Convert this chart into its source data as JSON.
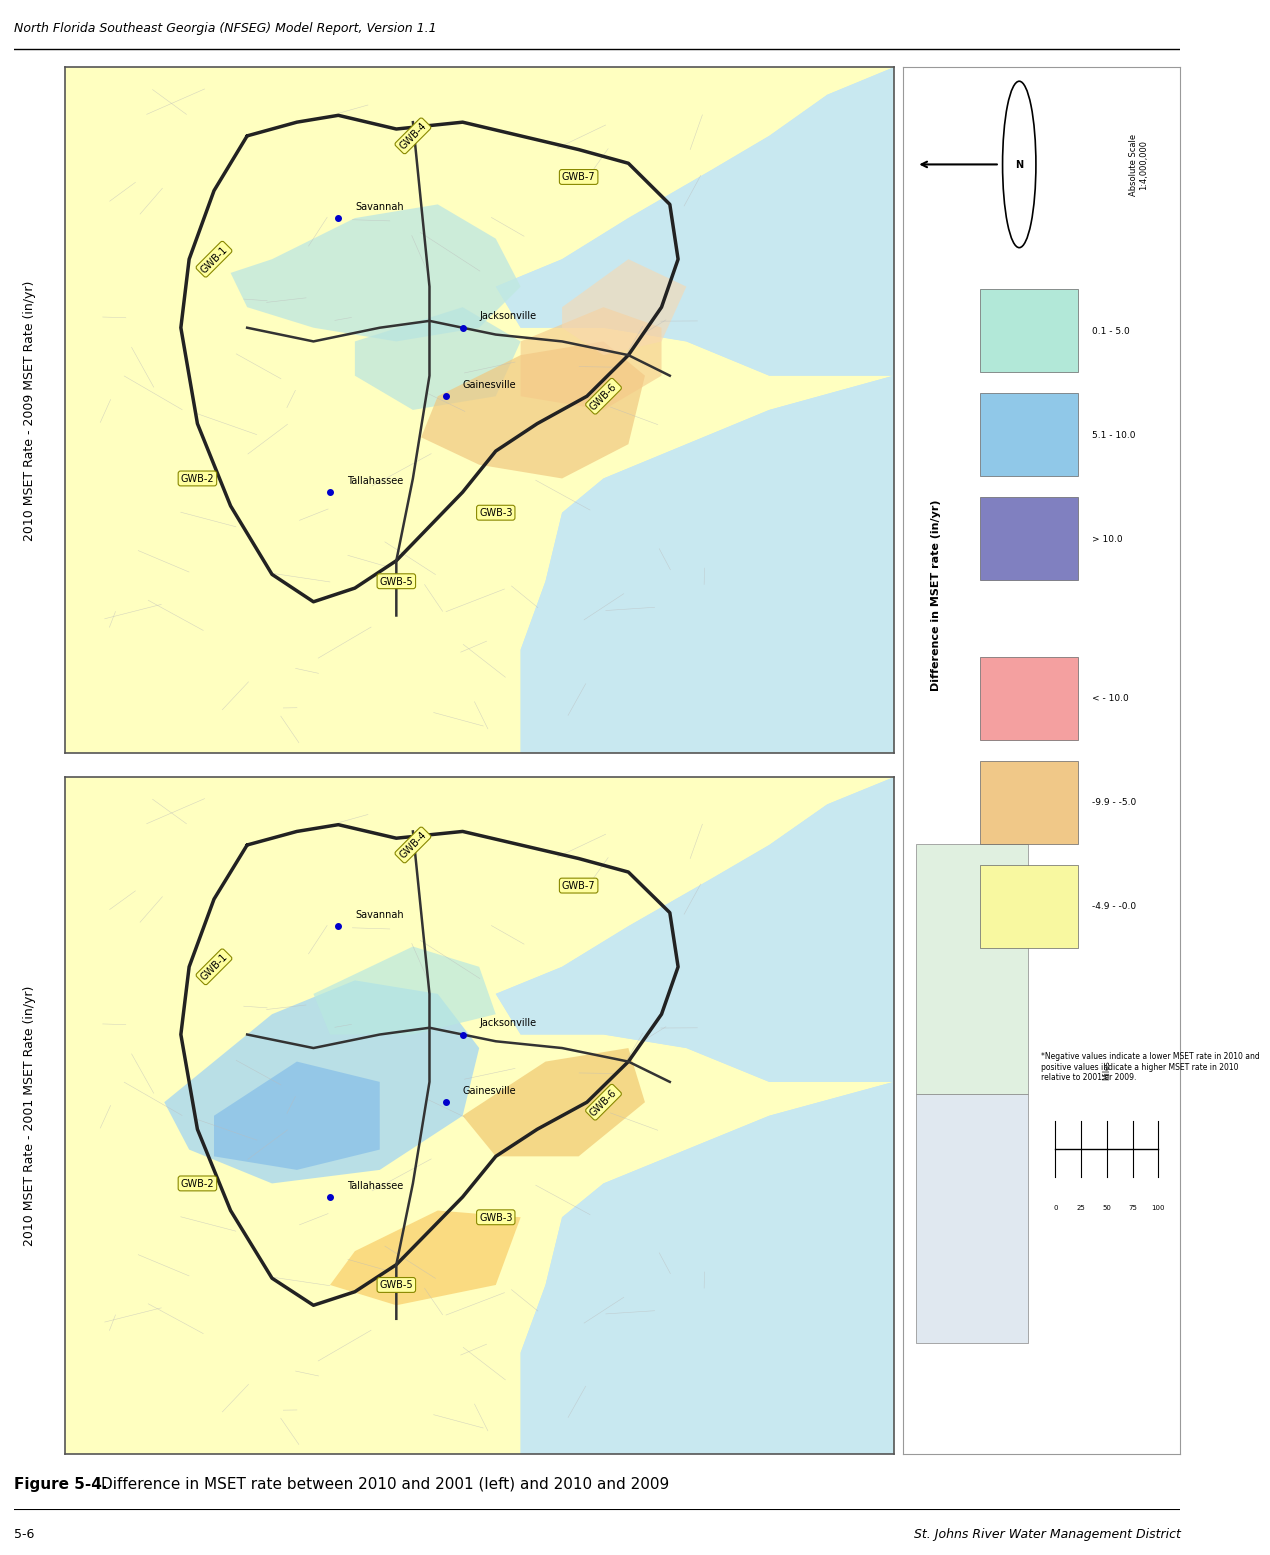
{
  "header_text": "North Florida Southeast Georgia (NFSEG) Model Report, Version 1.1",
  "header_fontsize": 9,
  "header_color": "#000000",
  "figure_caption_bold": "Figure 5-4.",
  "figure_caption_desc": "     Difference in MSET rate between 2010 and 2001 (left) and 2010 and 2009",
  "figure_caption_fontsize": 11,
  "footer_left": "5-6",
  "footer_right": "St. Johns River Water Management District",
  "footer_fontsize": 9,
  "page_bg": "#ffffff",
  "map_water_color": "#c8e8f0",
  "map_outside_color": "#f0f0f0",
  "map_land_base": "#ffffc0",
  "map_border_outer": "#888888",
  "map_border_inner": "#333333",
  "top_map_ylabel": "2010 MSET Rate - 2009 MSET Rate (in/yr)",
  "bottom_map_ylabel": "2010 MSET Rate - 2001 MSET Rate (in/yr)",
  "ylabel_fontsize": 9,
  "legend_title": "Difference in MSET rate (in/yr)",
  "legend_fontsize": 8,
  "legend_items_positive": [
    {
      "label": "0.1 - 5.0",
      "color": "#b2e8d8"
    },
    {
      "label": "5.1 - 10.0",
      "color": "#90c8e8"
    },
    {
      "label": "> 10.0",
      "color": "#8080c0"
    }
  ],
  "legend_items_negative": [
    {
      "label": "< - 10.0",
      "color": "#f4a0a0"
    },
    {
      "label": "-9.9 - -5.0",
      "color": "#f0c888"
    },
    {
      "label": "-4.9 - -0.0",
      "color": "#f8f8a0"
    }
  ],
  "legend_note": "*Negative values indicate a lower MSET rate in 2010 and\npositive values indicate a higher MSET rate in 2010\nrelative to 2001 or 2009.",
  "scale_text": "Absolute Scale\n1:4,000,000",
  "gwb_box_color": "#ffffa0",
  "gwb_box_edge": "#888800",
  "gwb_fontsize": 7,
  "city_fontsize": 7,
  "city_dot_color": "#0000cc"
}
